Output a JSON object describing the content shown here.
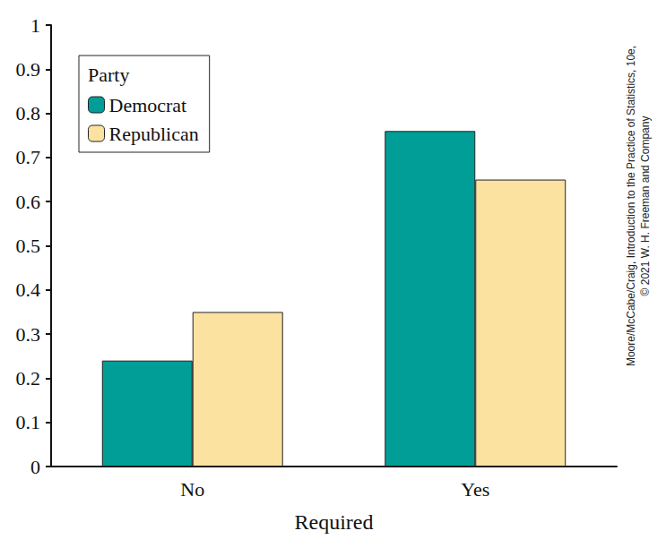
{
  "chart_data": {
    "type": "bar",
    "x_label": "Required",
    "categories": [
      "No",
      "Yes"
    ],
    "series": [
      {
        "name": "Democrat",
        "color": "#009e96",
        "values": [
          0.24,
          0.76
        ]
      },
      {
        "name": "Republican",
        "color": "#fbe2a0",
        "values": [
          0.35,
          0.65
        ]
      }
    ],
    "ylim": [
      0,
      1
    ],
    "yticks": [
      0,
      0.1,
      0.2,
      0.3,
      0.4,
      0.5,
      0.6,
      0.7,
      0.8,
      0.9,
      1
    ],
    "grid": false,
    "legend": "top-left",
    "legend_title": "Party",
    "annotations": [
      "Moore/McCabe/Craig, Introduction to the Practice of Statistics, 10e,",
      "© 2021 W. H. Freeman and Company"
    ]
  }
}
